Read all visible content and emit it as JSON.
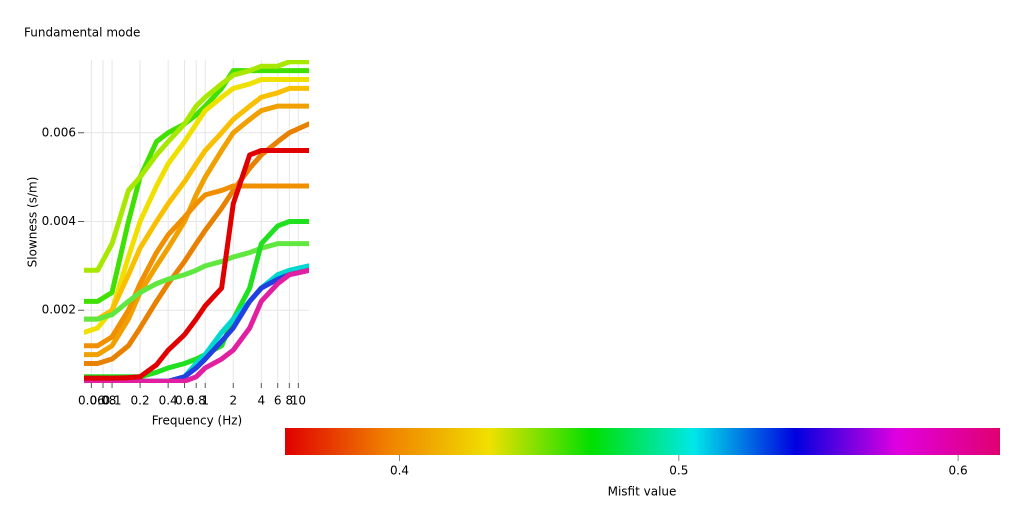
{
  "chart_data": {
    "type": "line",
    "title": "Fundamental mode",
    "x_label": "Frequency (Hz)",
    "y_label": "Slowness (s/m)",
    "x_log": true,
    "grid": true,
    "xlim": [
      0.05,
      13
    ],
    "ylim": [
      0.00036,
      0.00764
    ],
    "xticks": [
      0.06,
      0.08,
      0.1,
      0.2,
      0.4,
      0.6,
      0.8,
      1,
      2,
      4,
      6,
      8,
      10
    ],
    "yticks": [
      0.002,
      0.004,
      0.006
    ],
    "x": [
      0.05,
      0.07,
      0.1,
      0.15,
      0.2,
      0.3,
      0.4,
      0.6,
      0.8,
      1,
      1.5,
      2,
      3,
      4,
      6,
      8,
      13
    ],
    "series": [
      {
        "color": "#40e000",
        "values": [
          0.0022,
          0.0022,
          0.0024,
          0.004,
          0.005,
          0.0058,
          0.006,
          0.0062,
          0.0064,
          0.0066,
          0.007,
          0.0074,
          0.0074,
          0.0074,
          0.0074,
          0.0074,
          0.0074
        ]
      },
      {
        "color": "#a8e800",
        "values": [
          0.0029,
          0.0029,
          0.0035,
          0.0047,
          0.005,
          0.0055,
          0.0058,
          0.0062,
          0.0066,
          0.0068,
          0.0071,
          0.0073,
          0.0074,
          0.0075,
          0.0075,
          0.0076,
          0.0076
        ]
      },
      {
        "color": "#f0e000",
        "values": [
          0.0015,
          0.0016,
          0.002,
          0.0032,
          0.004,
          0.0048,
          0.0053,
          0.0058,
          0.0062,
          0.0065,
          0.0068,
          0.007,
          0.0071,
          0.0072,
          0.0072,
          0.0072,
          0.0072
        ]
      },
      {
        "color": "#f0a000",
        "values": [
          0.001,
          0.001,
          0.0012,
          0.0018,
          0.0024,
          0.003,
          0.0034,
          0.004,
          0.0046,
          0.005,
          0.0056,
          0.006,
          0.0063,
          0.0065,
          0.0066,
          0.0066,
          0.0066
        ]
      },
      {
        "color": "#e88000",
        "values": [
          0.0008,
          0.0008,
          0.0009,
          0.0012,
          0.0016,
          0.0022,
          0.0026,
          0.0031,
          0.0035,
          0.0038,
          0.0043,
          0.0047,
          0.0052,
          0.0055,
          0.0058,
          0.006,
          0.0062
        ]
      },
      {
        "color": "#f09000",
        "values": [
          0.0012,
          0.0012,
          0.0014,
          0.002,
          0.0026,
          0.0033,
          0.0037,
          0.0041,
          0.0044,
          0.0046,
          0.0047,
          0.0048,
          0.0048,
          0.0048,
          0.0048,
          0.0048,
          0.0048
        ]
      },
      {
        "color": "#f8c000",
        "values": [
          0.0018,
          0.0018,
          0.002,
          0.0028,
          0.0034,
          0.004,
          0.0044,
          0.0049,
          0.0053,
          0.0056,
          0.006,
          0.0063,
          0.0066,
          0.0068,
          0.0069,
          0.007,
          0.007
        ]
      },
      {
        "color": "#60e840",
        "values": [
          0.0018,
          0.0018,
          0.0019,
          0.0022,
          0.0024,
          0.0026,
          0.0027,
          0.0028,
          0.0029,
          0.003,
          0.0031,
          0.0032,
          0.0033,
          0.0034,
          0.0035,
          0.0035,
          0.0035
        ]
      },
      {
        "color": "#20e020",
        "values": [
          0.0005,
          0.0005,
          0.0005,
          0.0005,
          0.0005,
          0.0006,
          0.0007,
          0.0008,
          0.0009,
          0.001,
          0.0012,
          0.0018,
          0.0025,
          0.0035,
          0.0039,
          0.004,
          0.004
        ]
      },
      {
        "color": "#00d8d0",
        "values": [
          0.0004,
          0.0004,
          0.0004,
          0.0004,
          0.0004,
          0.0004,
          0.0004,
          0.0005,
          0.0008,
          0.001,
          0.0015,
          0.0018,
          0.0022,
          0.0025,
          0.0028,
          0.0029,
          0.003
        ]
      },
      {
        "color": "#2040e0",
        "values": [
          0.0004,
          0.0004,
          0.0004,
          0.0004,
          0.0004,
          0.0004,
          0.0004,
          0.0005,
          0.0007,
          0.0009,
          0.0013,
          0.0016,
          0.0022,
          0.0025,
          0.0027,
          0.0028,
          0.0029
        ]
      },
      {
        "color": "#e020a0",
        "values": [
          0.0004,
          0.0004,
          0.0004,
          0.0004,
          0.0004,
          0.0004,
          0.0004,
          0.0004,
          0.0005,
          0.0007,
          0.0009,
          0.0011,
          0.0016,
          0.0022,
          0.0026,
          0.0028,
          0.0029
        ]
      },
      {
        "color": "#e00000",
        "values": [
          0.00047,
          0.00047,
          0.00047,
          0.00048,
          0.0005,
          0.00077,
          0.0011,
          0.00145,
          0.0018,
          0.0021,
          0.0025,
          0.0044,
          0.0055,
          0.0056,
          0.0056,
          0.0056,
          0.0056
        ]
      }
    ],
    "colorbar": {
      "label": "Misfit value",
      "lim": [
        0.359,
        0.615
      ],
      "ticks": [
        0.4,
        0.5,
        0.6
      ],
      "colors": [
        "#e00000",
        "#f08000",
        "#f0e000",
        "#00e000",
        "#00e8e8",
        "#0000e0",
        "#e000e0",
        "#e00070"
      ]
    }
  }
}
